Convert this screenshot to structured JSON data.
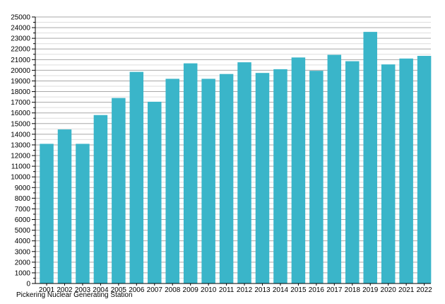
{
  "caption": "Pickering Nuclear Generating Station",
  "colors": {
    "bar": "#3AB5C9",
    "grid_major": "#A9A9A9",
    "grid_minor": "#DEDEDE",
    "axis": "#000000",
    "text": "#000000",
    "background": "#FFFFFF"
  },
  "chart_data": {
    "type": "bar",
    "title": "",
    "xlabel": "",
    "ylabel": "",
    "caption": "Pickering Nuclear Generating Station",
    "categories": [
      "2001",
      "2002",
      "2003",
      "2004",
      "2005",
      "2006",
      "2007",
      "2008",
      "2009",
      "2010",
      "2011",
      "2012",
      "2013",
      "2014",
      "2015",
      "2016",
      "2017",
      "2018",
      "2019",
      "2020",
      "2021",
      "2022"
    ],
    "values": [
      13100,
      14450,
      13100,
      15800,
      17400,
      19850,
      17050,
      19200,
      20650,
      19200,
      19650,
      20750,
      19750,
      20100,
      21200,
      19950,
      21450,
      20850,
      23600,
      20550,
      21100,
      21350
    ],
    "ylim": [
      0,
      25000
    ],
    "y_major_step": 1000,
    "y_minor_step": 500,
    "y_tick_labels": [
      "0",
      "1000",
      "2000",
      "3000",
      "4000",
      "5000",
      "6000",
      "7000",
      "8000",
      "9000",
      "10000",
      "11000",
      "12000",
      "13000",
      "14000",
      "15000",
      "16000",
      "17000",
      "18000",
      "19000",
      "20000",
      "21000",
      "22000",
      "23000",
      "24000",
      "25000"
    ],
    "grid": true,
    "legend": "none",
    "bar_color": "#3AB5C9"
  }
}
